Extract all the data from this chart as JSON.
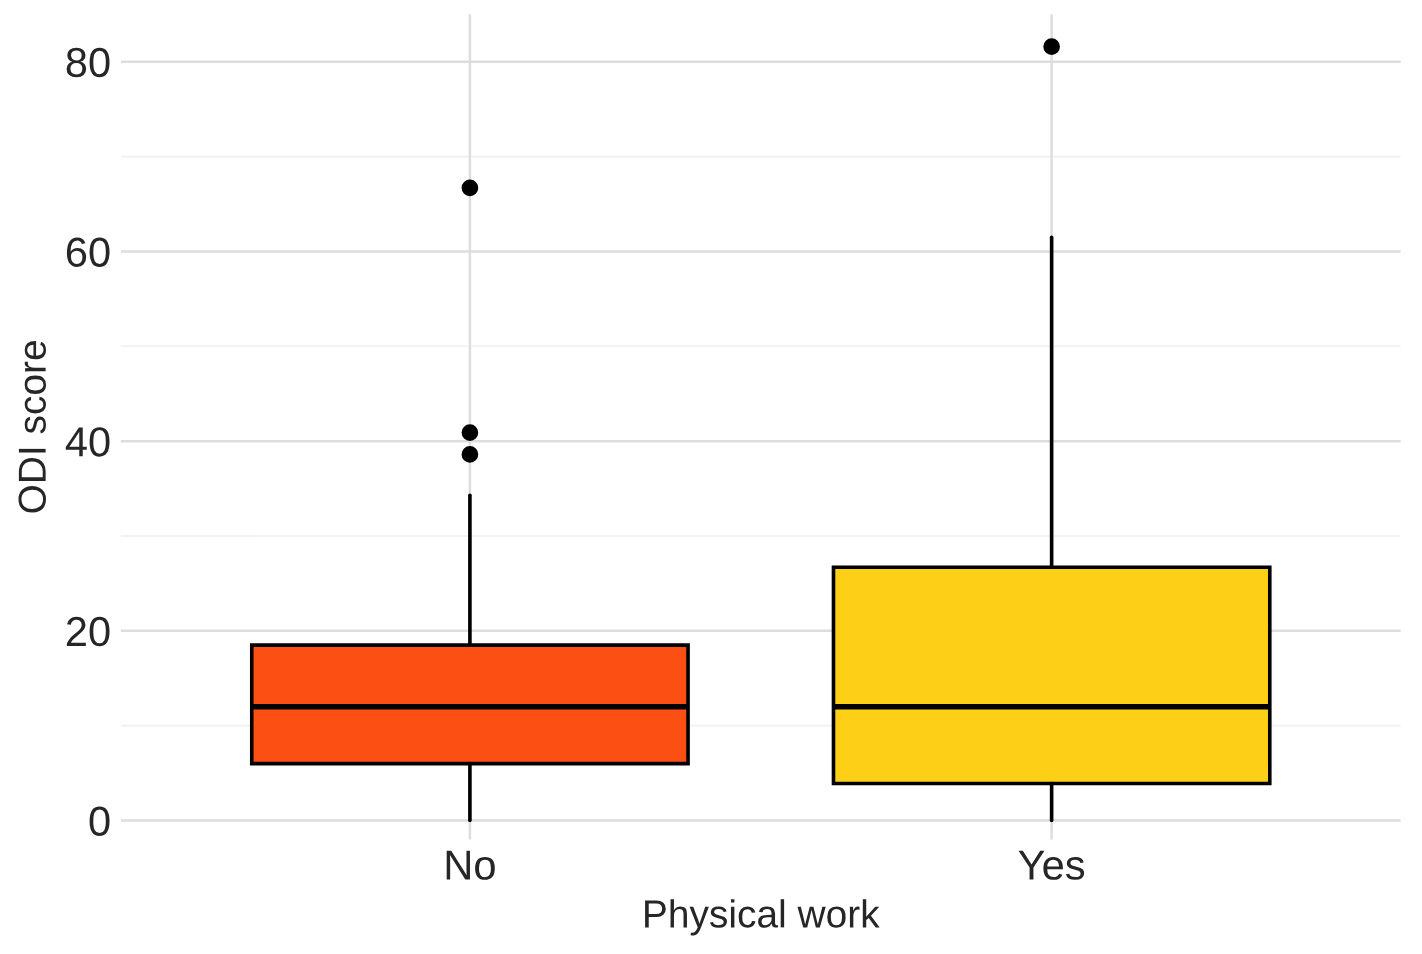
{
  "chart_data": {
    "type": "box",
    "xlabel": "Physical work",
    "ylabel": "ODI score",
    "categories": [
      "No",
      "Yes"
    ],
    "colors": [
      "#fc4f14",
      "#fdd017"
    ],
    "boxes": [
      {
        "low": 0,
        "q1": 6,
        "median": 12,
        "q3": 18.5,
        "high": 34.3,
        "outliers": [
          66.7,
          40.9,
          38.6
        ]
      },
      {
        "low": 0,
        "q1": 3.9,
        "median": 12,
        "q3": 26.7,
        "high": 61.5,
        "outliers": [
          81.6
        ]
      }
    ],
    "ylim": [
      -2,
      85
    ],
    "yticks": [
      0,
      {
        "value": 10,
        "label": null
      },
      20,
      {
        "value": 30,
        "label": null
      },
      40,
      {
        "value": 50,
        "label": null
      },
      60,
      {
        "value": 70,
        "label": null
      },
      80
    ],
    "grid": true,
    "legend": false
  }
}
